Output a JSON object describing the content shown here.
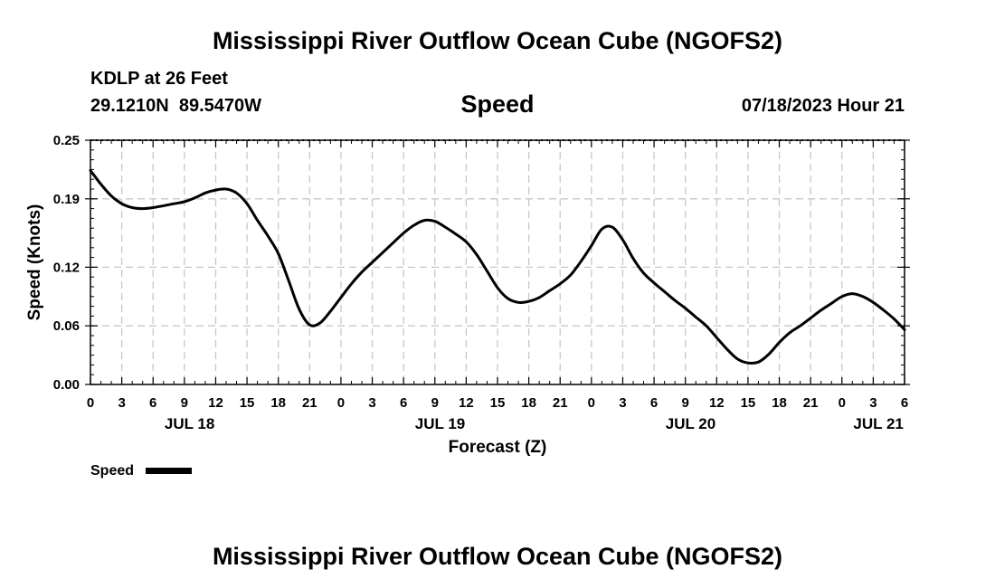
{
  "header": {
    "title": "Mississippi River Outflow Ocean Cube (NGOFS2)",
    "station": "KDLP at 26 Feet",
    "coords": "29.1210N  89.5470W",
    "datetime": "07/18/2023 Hour 21"
  },
  "footer": {
    "title": "Mississippi River Outflow Ocean Cube (NGOFS2)"
  },
  "colors": {
    "line": "#000000",
    "grid": "#c8c8c8",
    "background": "#ffffff"
  },
  "chart_data": {
    "type": "line",
    "title": "Speed",
    "xlabel": "Forecast (Z)",
    "ylabel": "Speed (Knots)",
    "x_unit": "hours since JUL 18 00Z",
    "xlim": [
      0,
      78
    ],
    "ylim": [
      0,
      0.25
    ],
    "yticks": [
      0.25,
      0.19,
      0.12,
      0.06,
      0.0
    ],
    "ytick_labels": [
      "0.25",
      "0.19",
      "0.12",
      "0.06",
      "0.00"
    ],
    "xticks": [
      0,
      3,
      6,
      9,
      12,
      15,
      18,
      21,
      24,
      27,
      30,
      33,
      36,
      39,
      42,
      45,
      48,
      51,
      54,
      57,
      60,
      63,
      66,
      69,
      72,
      75,
      78
    ],
    "xtick_labels": [
      "0",
      "3",
      "6",
      "9",
      "12",
      "15",
      "18",
      "21",
      "0",
      "3",
      "6",
      "9",
      "12",
      "15",
      "18",
      "21",
      "0",
      "3",
      "6",
      "9",
      "12",
      "15",
      "18",
      "21",
      "0",
      "3",
      "6"
    ],
    "day_labels": [
      {
        "label": "JUL 18",
        "x": 9.5
      },
      {
        "label": "JUL 19",
        "x": 33.5
      },
      {
        "label": "JUL 20",
        "x": 57.5
      },
      {
        "label": "JUL 21",
        "x": 75.5
      }
    ],
    "grid": true,
    "legend": {
      "position": "bottom-left",
      "label": "Speed"
    },
    "series": [
      {
        "name": "Speed",
        "x": [
          0,
          1,
          2,
          3,
          4,
          5,
          6,
          8,
          9,
          10,
          11,
          12,
          13,
          14,
          15,
          16,
          17,
          18,
          19,
          20,
          21,
          22,
          23,
          24,
          25,
          26,
          27,
          28,
          29,
          30,
          31,
          32,
          33,
          34,
          35,
          36,
          37,
          38,
          39,
          40,
          41,
          42,
          43,
          44,
          45,
          46,
          47,
          48,
          49,
          50,
          51,
          52,
          53,
          54,
          55,
          56,
          57,
          58,
          59,
          60,
          61,
          62,
          63,
          64,
          65,
          66,
          67,
          68,
          69,
          70,
          71,
          72,
          73,
          74,
          75,
          76,
          77,
          78
        ],
        "values": [
          0.219,
          0.205,
          0.193,
          0.185,
          0.181,
          0.18,
          0.181,
          0.185,
          0.187,
          0.191,
          0.196,
          0.199,
          0.2,
          0.196,
          0.185,
          0.168,
          0.152,
          0.134,
          0.106,
          0.077,
          0.061,
          0.063,
          0.075,
          0.089,
          0.103,
          0.115,
          0.125,
          0.135,
          0.145,
          0.155,
          0.163,
          0.168,
          0.167,
          0.161,
          0.154,
          0.146,
          0.133,
          0.116,
          0.099,
          0.088,
          0.084,
          0.085,
          0.089,
          0.096,
          0.103,
          0.112,
          0.126,
          0.142,
          0.159,
          0.161,
          0.148,
          0.129,
          0.114,
          0.104,
          0.095,
          0.086,
          0.078,
          0.069,
          0.06,
          0.048,
          0.036,
          0.026,
          0.022,
          0.023,
          0.031,
          0.043,
          0.053,
          0.06,
          0.068,
          0.076,
          0.083,
          0.09,
          0.093,
          0.09,
          0.084,
          0.076,
          0.067,
          0.056
        ]
      }
    ]
  }
}
